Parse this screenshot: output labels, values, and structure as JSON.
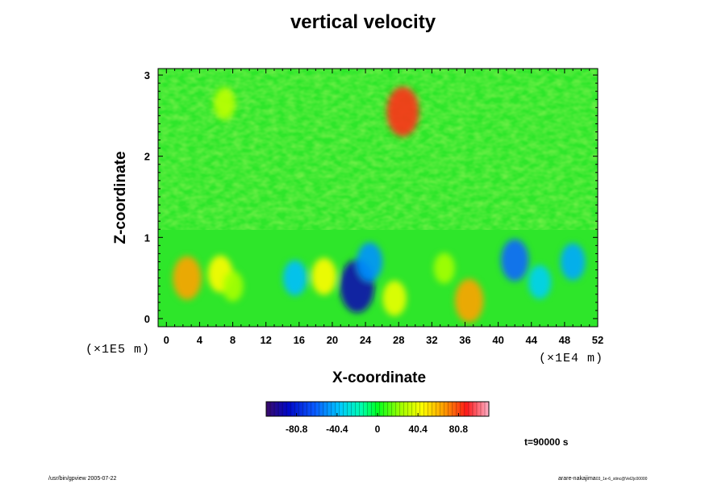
{
  "chart_data": {
    "type": "heatmap",
    "title": "vertical velocity",
    "xlabel": "X-coordinate",
    "ylabel": "Z-coordinate",
    "x_unit": "(×1E4 m)",
    "y_unit": "(×1E5 m)",
    "x_ticks": [
      "0",
      "4",
      "8",
      "12",
      "16",
      "20",
      "24",
      "28",
      "32",
      "36",
      "40",
      "44",
      "48",
      "52"
    ],
    "y_ticks": [
      "0",
      "1",
      "2",
      "3"
    ],
    "xlim": [
      -1,
      52
    ],
    "ylim": [
      -0.1,
      3.08
    ],
    "colorbar": {
      "ticks": [
        "-80.8",
        "-40.4",
        "0",
        "40.4",
        "80.8"
      ],
      "range": [
        -111.1,
        111.1
      ]
    },
    "grid": false,
    "features": [
      {
        "x": 2.5,
        "z": 0.5,
        "value": 65
      },
      {
        "x": 6.5,
        "z": 0.55,
        "value": 45
      },
      {
        "x": 8.0,
        "z": 0.4,
        "value": 25
      },
      {
        "x": 15.5,
        "z": 0.5,
        "value": -40
      },
      {
        "x": 19.0,
        "z": 0.52,
        "value": 45
      },
      {
        "x": 23.0,
        "z": 0.4,
        "value": -95
      },
      {
        "x": 24.5,
        "z": 0.7,
        "value": -50
      },
      {
        "x": 27.5,
        "z": 0.25,
        "value": 40
      },
      {
        "x": 28.5,
        "z": 2.55,
        "value": 85
      },
      {
        "x": 33.5,
        "z": 0.62,
        "value": 25
      },
      {
        "x": 36.5,
        "z": 0.22,
        "value": 65
      },
      {
        "x": 42.0,
        "z": 0.72,
        "value": -60
      },
      {
        "x": 45.0,
        "z": 0.45,
        "value": -35
      },
      {
        "x": 49.0,
        "z": 0.7,
        "value": -45
      },
      {
        "x": 7.0,
        "z": 2.65,
        "value": 30
      }
    ]
  },
  "time_label": "t=90000 s",
  "footer_left": "/usr/bin/gpview 2005-07-22",
  "footer_right": "arare-nakajima",
  "footer_right_sub": "03_1e-6_stinc@Vel2jc00000"
}
